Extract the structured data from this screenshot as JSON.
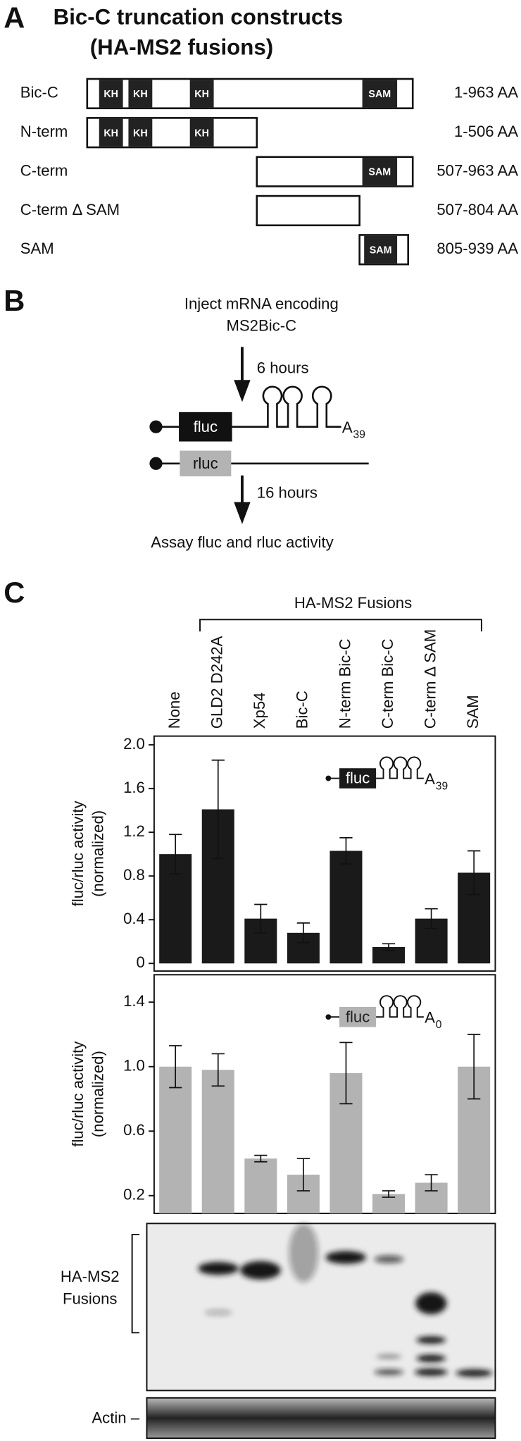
{
  "panel_a": {
    "letter": "A",
    "title_lines": [
      "Bic-C truncation constructs",
      "(HA-MS2 fusions)"
    ],
    "constructs": [
      {
        "name": "Bic-C",
        "domains": [
          "KH",
          "KH",
          "KH",
          "SAM"
        ],
        "range": "1-963 AA"
      },
      {
        "name": "N-term",
        "domains": [
          "KH",
          "KH",
          "KH"
        ],
        "range": "1-506 AA"
      },
      {
        "name": "C-term",
        "domains": [
          "SAM"
        ],
        "range": "507-963 AA"
      },
      {
        "name": "C-term Δ SAM",
        "domains": [],
        "range": "507-804 AA"
      },
      {
        "name": "SAM",
        "domains": [
          "SAM"
        ],
        "range": "805-939 AA"
      }
    ]
  },
  "panel_b": {
    "letter": "B",
    "step1_lines": [
      "Inject mRNA encoding",
      "MS2Bic-C"
    ],
    "time1": "6 hours",
    "reporter": "fluc",
    "tail": "A",
    "tail_sub": "39",
    "control": "rluc",
    "time2": "16 hours",
    "step2": "Assay fluc and rluc activity"
  },
  "panel_c": {
    "letter": "C",
    "group_label": "HA-MS2 Fusions",
    "blot_label_lines": [
      "HA-MS2",
      "Fusions"
    ],
    "loading_label": "Actin –"
  },
  "chart_data": [
    {
      "type": "bar",
      "categories": [
        "None",
        "GLD2 D242A",
        "Xp54",
        "Bic-C",
        "N-term Bic-C",
        "C-term Bic-C",
        "C-term Δ SAM",
        "SAM"
      ],
      "ylabel_lines": [
        "fluc/rluc activity",
        "(normalized)"
      ],
      "values": [
        1.0,
        1.41,
        0.41,
        0.28,
        1.03,
        0.15,
        0.41,
        0.83
      ],
      "errors": [
        0.18,
        0.45,
        0.13,
        0.09,
        0.12,
        0.03,
        0.09,
        0.2
      ],
      "color": "#1a1a1a",
      "ylim": [
        -0.07,
        2.08
      ],
      "yticks": [
        0,
        0.4,
        0.8,
        1.2,
        1.6,
        {
          "value": 2,
          "label": "2.0"
        }
      ],
      "inset": {
        "label": "fluc",
        "tail": "A",
        "tail_sub": "39"
      }
    },
    {
      "type": "bar",
      "ylabel_lines": [
        "fluc/rluc activity",
        "(normalized)"
      ],
      "values": [
        1.0,
        0.98,
        0.43,
        0.33,
        0.96,
        0.21,
        0.28,
        1.0
      ],
      "errors": [
        0.13,
        0.1,
        0.02,
        0.1,
        0.19,
        0.02,
        0.05,
        0.2
      ],
      "color": "#b3b3b3",
      "ylim": [
        0.09,
        1.57
      ],
      "yticks": [
        0.2,
        0.6,
        {
          "value": 1,
          "label": "1.0"
        },
        1.4
      ],
      "inset": {
        "label": "fluc",
        "tail": "A",
        "tail_sub": "0"
      }
    }
  ]
}
